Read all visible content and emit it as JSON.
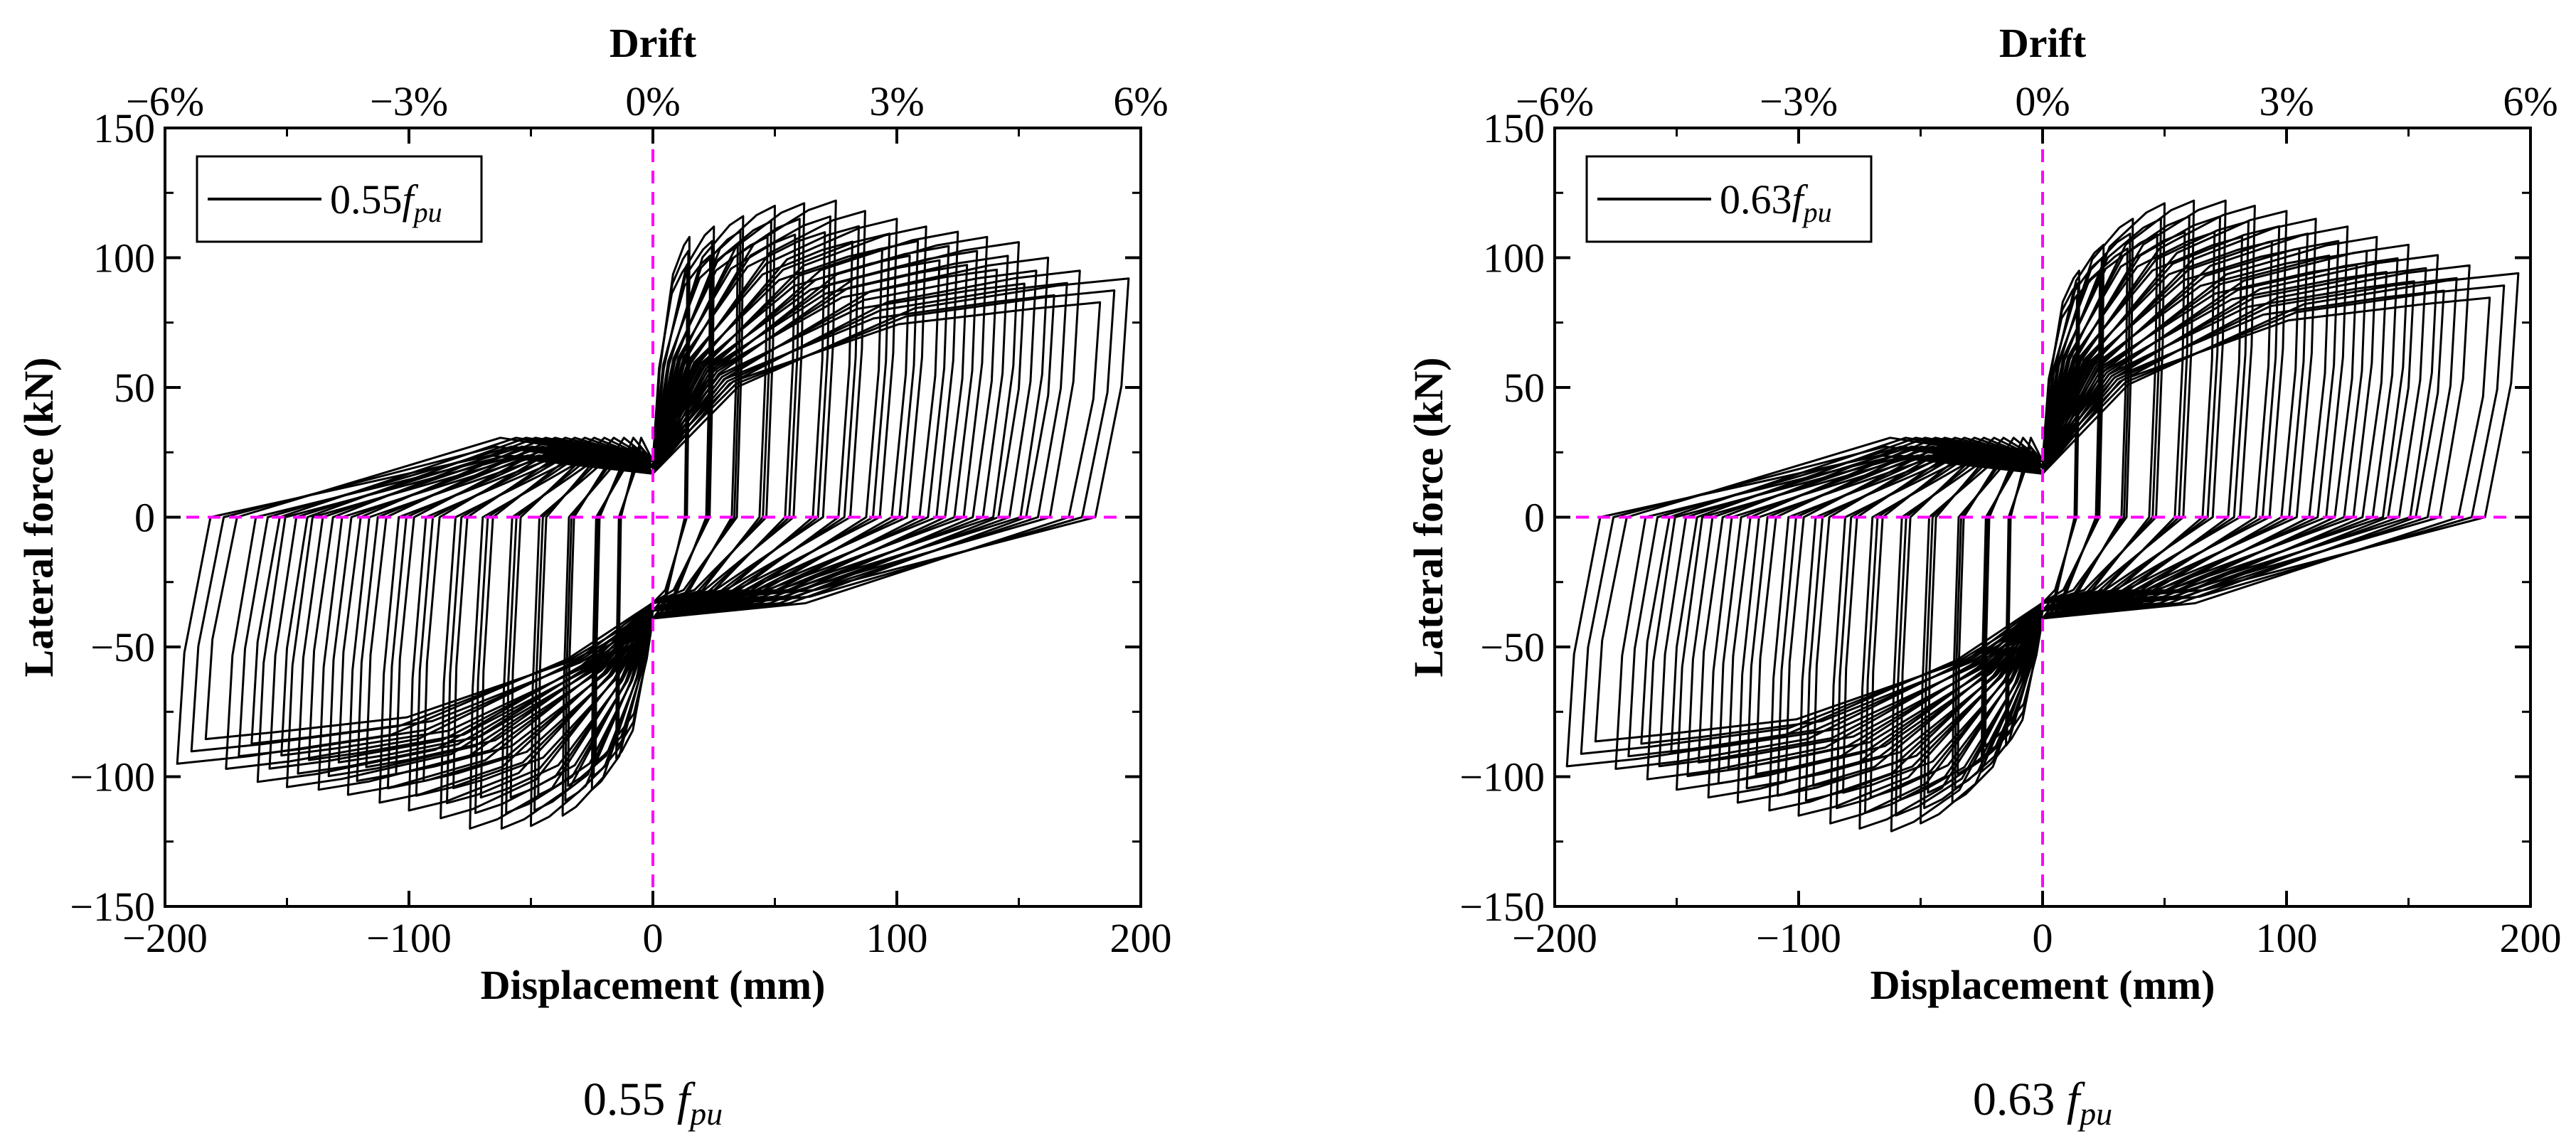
{
  "colors": {
    "curve": "#000000",
    "reference_lines": "#ff00ff",
    "frame": "#000000"
  },
  "chart_data": [
    {
      "type": "line",
      "subtype": "hysteresis-loop",
      "caption": "0.55",
      "caption_sub": "f",
      "caption_subscript": "pu",
      "legend": {
        "value": "0.55",
        "symbol": "f",
        "subscript": "pu",
        "placement": "top-left"
      },
      "xlabel": "Displacement (mm)",
      "ylabel": "Lateral force (kN)",
      "top_xlabel": "Drift",
      "xlim": [
        -200,
        200
      ],
      "ylim": [
        -150,
        150
      ],
      "xticks": [
        -200,
        -100,
        0,
        100,
        200
      ],
      "xtick_labels": [
        "−200",
        "−100",
        "0",
        "100",
        "200"
      ],
      "yticks": [
        -150,
        -100,
        -50,
        0,
        50,
        100,
        150
      ],
      "ytick_labels": [
        "−150",
        "−100",
        "−50",
        "0",
        "50",
        "100",
        "150"
      ],
      "top_ticks_mm": [
        -200,
        -100,
        0,
        100,
        200
      ],
      "top_tick_labels": [
        "−6%",
        "−3%",
        "0%",
        "3%",
        "6%"
      ],
      "reference_lines": {
        "x": 0,
        "y": 0,
        "style": "dashed"
      },
      "loops": [
        {
          "amplitude_mm": 15,
          "peak_pos_kN": 108,
          "peak_neg_kN": -93,
          "cycles": 3
        },
        {
          "amplitude_mm": 25,
          "peak_pos_kN": 112,
          "peak_neg_kN": -105,
          "cycles": 3
        },
        {
          "amplitude_mm": 37,
          "peak_pos_kN": 116,
          "peak_neg_kN": -115,
          "cycles": 3
        },
        {
          "amplitude_mm": 50,
          "peak_pos_kN": 120,
          "peak_neg_kN": -119,
          "cycles": 3
        },
        {
          "amplitude_mm": 62,
          "peak_pos_kN": 121,
          "peak_neg_kN": -120,
          "cycles": 3
        },
        {
          "amplitude_mm": 75,
          "peak_pos_kN": 122,
          "peak_neg_kN": -120,
          "cycles": 3
        },
        {
          "amplitude_mm": 87,
          "peak_pos_kN": 118,
          "peak_neg_kN": -116,
          "cycles": 3
        },
        {
          "amplitude_mm": 100,
          "peak_pos_kN": 115,
          "peak_neg_kN": -113,
          "cycles": 3
        },
        {
          "amplitude_mm": 112,
          "peak_pos_kN": 112,
          "peak_neg_kN": -110,
          "cycles": 3
        },
        {
          "amplitude_mm": 125,
          "peak_pos_kN": 110,
          "peak_neg_kN": -107,
          "cycles": 3
        },
        {
          "amplitude_mm": 137,
          "peak_pos_kN": 108,
          "peak_neg_kN": -105,
          "cycles": 3
        },
        {
          "amplitude_mm": 150,
          "peak_pos_kN": 106,
          "peak_neg_kN": -104,
          "cycles": 3
        },
        {
          "amplitude_mm": 162,
          "peak_pos_kN": 100,
          "peak_neg_kN": -102,
          "cycles": 3
        },
        {
          "amplitude_mm": 175,
          "peak_pos_kN": 95,
          "peak_neg_kN": -97,
          "cycles": 3
        },
        {
          "amplitude_mm": 195,
          "peak_pos_kN": 92,
          "peak_neg_kN": -95,
          "cycles": 3
        }
      ]
    },
    {
      "type": "line",
      "subtype": "hysteresis-loop",
      "caption": "0.63",
      "caption_sub": "f",
      "caption_subscript": "pu",
      "legend": {
        "value": "0.63",
        "symbol": "f",
        "subscript": "pu",
        "placement": "top-left"
      },
      "xlabel": "Displacement (mm)",
      "ylabel": "Lateral force (kN)",
      "top_xlabel": "Drift",
      "xlim": [
        -200,
        200
      ],
      "ylim": [
        -150,
        150
      ],
      "xticks": [
        -200,
        -100,
        0,
        100,
        200
      ],
      "xtick_labels": [
        "−200",
        "−100",
        "0",
        "100",
        "200"
      ],
      "yticks": [
        -150,
        -100,
        -50,
        0,
        50,
        100,
        150
      ],
      "ytick_labels": [
        "−150",
        "−100",
        "−50",
        "0",
        "50",
        "100",
        "150"
      ],
      "top_ticks_mm": [
        -200,
        -100,
        0,
        100,
        200
      ],
      "top_tick_labels": [
        "−6%",
        "−3%",
        "0%",
        "3%",
        "6%"
      ],
      "reference_lines": {
        "x": 0,
        "y": 0,
        "style": "dashed"
      },
      "loops": [
        {
          "amplitude_mm": 15,
          "peak_pos_kN": 95,
          "peak_neg_kN": -88,
          "cycles": 3
        },
        {
          "amplitude_mm": 25,
          "peak_pos_kN": 105,
          "peak_neg_kN": -98,
          "cycles": 3
        },
        {
          "amplitude_mm": 37,
          "peak_pos_kN": 115,
          "peak_neg_kN": -110,
          "cycles": 3
        },
        {
          "amplitude_mm": 50,
          "peak_pos_kN": 121,
          "peak_neg_kN": -118,
          "cycles": 3
        },
        {
          "amplitude_mm": 62,
          "peak_pos_kN": 122,
          "peak_neg_kN": -121,
          "cycles": 3
        },
        {
          "amplitude_mm": 75,
          "peak_pos_kN": 122,
          "peak_neg_kN": -120,
          "cycles": 3
        },
        {
          "amplitude_mm": 87,
          "peak_pos_kN": 120,
          "peak_neg_kN": -118,
          "cycles": 3
        },
        {
          "amplitude_mm": 100,
          "peak_pos_kN": 118,
          "peak_neg_kN": -115,
          "cycles": 3
        },
        {
          "amplitude_mm": 112,
          "peak_pos_kN": 115,
          "peak_neg_kN": -113,
          "cycles": 3
        },
        {
          "amplitude_mm": 125,
          "peak_pos_kN": 112,
          "peak_neg_kN": -110,
          "cycles": 3
        },
        {
          "amplitude_mm": 137,
          "peak_pos_kN": 108,
          "peak_neg_kN": -108,
          "cycles": 3
        },
        {
          "amplitude_mm": 150,
          "peak_pos_kN": 105,
          "peak_neg_kN": -105,
          "cycles": 3
        },
        {
          "amplitude_mm": 162,
          "peak_pos_kN": 101,
          "peak_neg_kN": -101,
          "cycles": 3
        },
        {
          "amplitude_mm": 175,
          "peak_pos_kN": 97,
          "peak_neg_kN": -97,
          "cycles": 3
        },
        {
          "amplitude_mm": 195,
          "peak_pos_kN": 94,
          "peak_neg_kN": -96,
          "cycles": 3
        }
      ]
    }
  ]
}
